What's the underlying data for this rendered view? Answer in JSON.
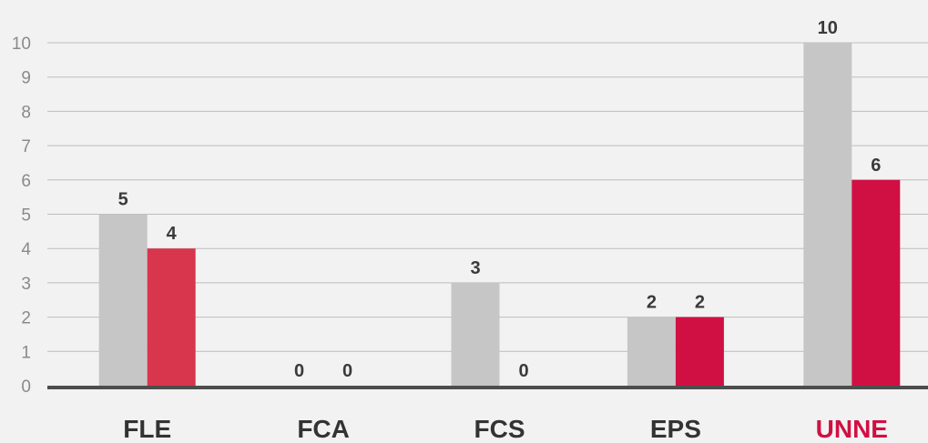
{
  "chart_data": {
    "type": "bar",
    "categories": [
      "FLE",
      "FCA",
      "FCS",
      "EPS",
      "UNNE"
    ],
    "series": [
      {
        "values": [
          5,
          0,
          3,
          2,
          10
        ],
        "color": "#c6c6c6"
      },
      {
        "values": [
          4,
          0,
          0,
          2,
          6
        ],
        "color": "#d8364c"
      }
    ],
    "category_colors": [
      "#333333",
      "#333333",
      "#333333",
      "#333333",
      "#d01042"
    ],
    "highlight_series_color": "#d01042",
    "y_ticks": [
      "0",
      "1",
      "2",
      "3",
      "4",
      "5",
      "6",
      "7",
      "8",
      "9",
      "10"
    ],
    "ylim": [
      0,
      10
    ],
    "grid": true,
    "legend": "none"
  }
}
